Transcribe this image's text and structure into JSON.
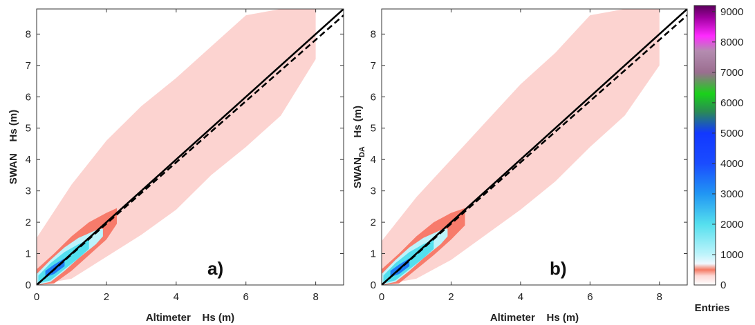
{
  "chart_data": [
    {
      "type": "heatmap",
      "panel": "a)",
      "xlabel": "Altimeter    Hs (m)",
      "ylabel": "SWAN    Hs (m)",
      "ylabel_subscript": "",
      "xlim": [
        0,
        8.8
      ],
      "ylim": [
        0,
        8.8
      ],
      "xticks": [
        0,
        2,
        4,
        6,
        8
      ],
      "yticks": [
        0,
        1,
        2,
        3,
        4,
        5,
        6,
        7,
        8
      ],
      "lines": [
        {
          "style": "solid",
          "x": [
            0,
            8.8
          ],
          "y": [
            0,
            8.8
          ]
        },
        {
          "style": "dashed",
          "x": [
            0,
            8.8
          ],
          "y": [
            0,
            8.6
          ]
        }
      ],
      "density_band": {
        "x": [
          0,
          1,
          2,
          3,
          4,
          5,
          6,
          7,
          8
        ],
        "y_low": [
          0,
          0.2,
          0.9,
          1.6,
          2.4,
          3.5,
          4.4,
          5.4,
          7.2
        ],
        "y_high": [
          1.5,
          3.2,
          4.6,
          5.7,
          6.6,
          7.6,
          8.6,
          8.8,
          8.8
        ]
      },
      "core_band": {
        "x": [
          0,
          0.5,
          1,
          1.5,
          2,
          2.3
        ],
        "y_low": [
          0,
          0.05,
          0.45,
          0.95,
          1.45,
          1.95
        ],
        "y_high": [
          0.5,
          1.0,
          1.55,
          2.0,
          2.3,
          2.45
        ]
      }
    },
    {
      "type": "heatmap",
      "panel": "b)",
      "xlabel": "Altimeter    Hs (m)",
      "ylabel": "SWAN",
      "ylabel_subscript": "DA",
      "ylabel_suffix": "   Hs (m)",
      "xlim": [
        0,
        8.8
      ],
      "ylim": [
        0,
        8.8
      ],
      "xticks": [
        0,
        2,
        4,
        6,
        8
      ],
      "yticks": [
        0,
        1,
        2,
        3,
        4,
        5,
        6,
        7,
        8
      ],
      "lines": [
        {
          "style": "solid",
          "x": [
            0,
            8.8
          ],
          "y": [
            0,
            8.8
          ]
        },
        {
          "style": "dashed",
          "x": [
            0,
            8.8
          ],
          "y": [
            0,
            8.6
          ]
        }
      ],
      "density_band": {
        "x": [
          0,
          1,
          2,
          3,
          4,
          5,
          6,
          7,
          8
        ],
        "y_low": [
          0,
          0.2,
          0.8,
          1.6,
          2.4,
          3.3,
          4.4,
          5.4,
          7.0
        ],
        "y_high": [
          1.4,
          2.8,
          4.0,
          5.2,
          6.4,
          7.4,
          8.6,
          8.8,
          8.8
        ]
      },
      "core_band": {
        "x": [
          0,
          0.5,
          1,
          1.5,
          2,
          2.4
        ],
        "y_low": [
          0,
          0.05,
          0.5,
          0.95,
          1.45,
          1.9
        ],
        "y_high": [
          0.5,
          1.0,
          1.55,
          2.0,
          2.3,
          2.45
        ]
      }
    }
  ],
  "colorbar": {
    "title": "Entries",
    "range": [
      0,
      9200
    ],
    "ticks": [
      0,
      1000,
      2000,
      3000,
      4000,
      5000,
      6000,
      7000,
      8000,
      9000
    ],
    "stops": [
      {
        "value": 0,
        "color": "#ffffff"
      },
      {
        "value": 300,
        "color": "#fdd9d6"
      },
      {
        "value": 500,
        "color": "#f57a63"
      },
      {
        "value": 700,
        "color": "#f0f8ff"
      },
      {
        "value": 1000,
        "color": "#bff4fb"
      },
      {
        "value": 2000,
        "color": "#55dfee"
      },
      {
        "value": 3000,
        "color": "#2196f3"
      },
      {
        "value": 4000,
        "color": "#1a4cff"
      },
      {
        "value": 5000,
        "color": "#1238ff"
      },
      {
        "value": 5700,
        "color": "#2a8a55"
      },
      {
        "value": 6300,
        "color": "#1ad11a"
      },
      {
        "value": 7000,
        "color": "#9b6e90"
      },
      {
        "value": 7700,
        "color": "#b48cb0"
      },
      {
        "value": 8200,
        "color": "#ff2aff"
      },
      {
        "value": 8800,
        "color": "#a100a1"
      },
      {
        "value": 9200,
        "color": "#5a005a"
      }
    ]
  },
  "colors": {
    "outer": "#fcd3d0",
    "mid": "#f77b6b",
    "core_light": "#bdf3fb",
    "core": "#53dfee",
    "hot": "#1f7cf5",
    "line": "#000000"
  }
}
